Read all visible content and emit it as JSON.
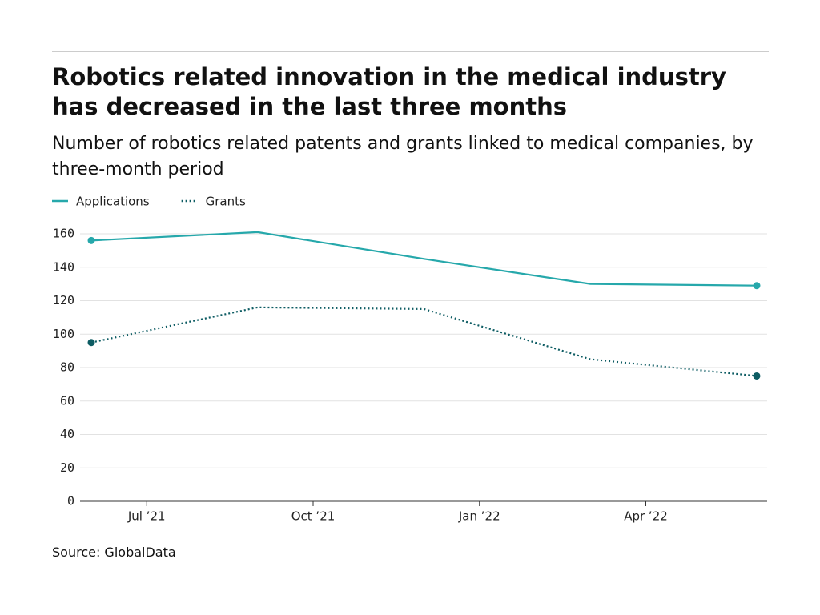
{
  "chart_data": {
    "type": "line",
    "title": "Robotics related innovation in the medical industry has decreased in the last three months",
    "subtitle": "Number of robotics related patents and grants linked to medical companies, by three-month period",
    "x": [
      "2021-06",
      "2021-09",
      "2021-12",
      "2022-03",
      "2022-06"
    ],
    "series": [
      {
        "name": "Applications",
        "color": "#26a8ab",
        "style": "solid",
        "values": [
          156,
          161,
          145,
          130,
          129
        ]
      },
      {
        "name": "Grants",
        "color": "#0d5c63",
        "style": "dotted",
        "values": [
          95,
          116,
          115,
          85,
          75
        ]
      }
    ],
    "xticks": [
      {
        "value": "2021-07",
        "label": "Jul ’21"
      },
      {
        "value": "2021-10",
        "label": "Oct ’21"
      },
      {
        "value": "2022-01",
        "label": "Jan ’22"
      },
      {
        "value": "2022-04",
        "label": "Apr ’22"
      }
    ],
    "ylim": [
      0,
      160
    ],
    "yticks": [
      0,
      20,
      40,
      60,
      80,
      100,
      120,
      140,
      160
    ],
    "grid": true,
    "source": "Source: GlobalData"
  }
}
